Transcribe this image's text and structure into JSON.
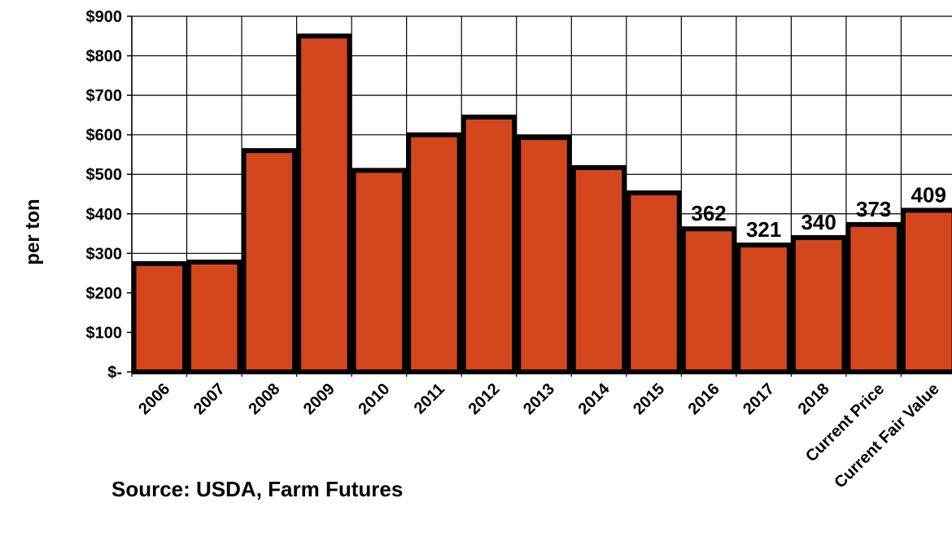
{
  "chart_data": {
    "type": "bar",
    "categories": [
      "2006",
      "2007",
      "2008",
      "2009",
      "2010",
      "2011",
      "2012",
      "2013",
      "2014",
      "2015",
      "2016",
      "2017",
      "2018",
      "Current Price",
      "Current Fair Value"
    ],
    "values": [
      274,
      278,
      560,
      850,
      510,
      600,
      645,
      593,
      517,
      453,
      362,
      321,
      340,
      373,
      409
    ],
    "data_labels": [
      null,
      null,
      null,
      null,
      null,
      null,
      null,
      null,
      null,
      null,
      "362",
      "321",
      "340",
      "373",
      "409"
    ],
    "y_ticks": [
      {
        "value": 0,
        "label": "$-"
      },
      {
        "value": 100,
        "label": "$100"
      },
      {
        "value": 200,
        "label": "$200"
      },
      {
        "value": 300,
        "label": "$300"
      },
      {
        "value": 400,
        "label": "$400"
      },
      {
        "value": 500,
        "label": "$500"
      },
      {
        "value": 600,
        "label": "$600"
      },
      {
        "value": 700,
        "label": "$700"
      },
      {
        "value": 800,
        "label": "$800"
      },
      {
        "value": 900,
        "label": "$900"
      }
    ],
    "ylim": [
      0,
      900
    ],
    "ylabel": "per ton",
    "xlabel": "",
    "grid": true,
    "colors": {
      "bar_fill": "#D4461E",
      "bar_stroke": "#000000",
      "grid": "#000000"
    }
  },
  "source_note": "Source: USDA, Farm Futures"
}
